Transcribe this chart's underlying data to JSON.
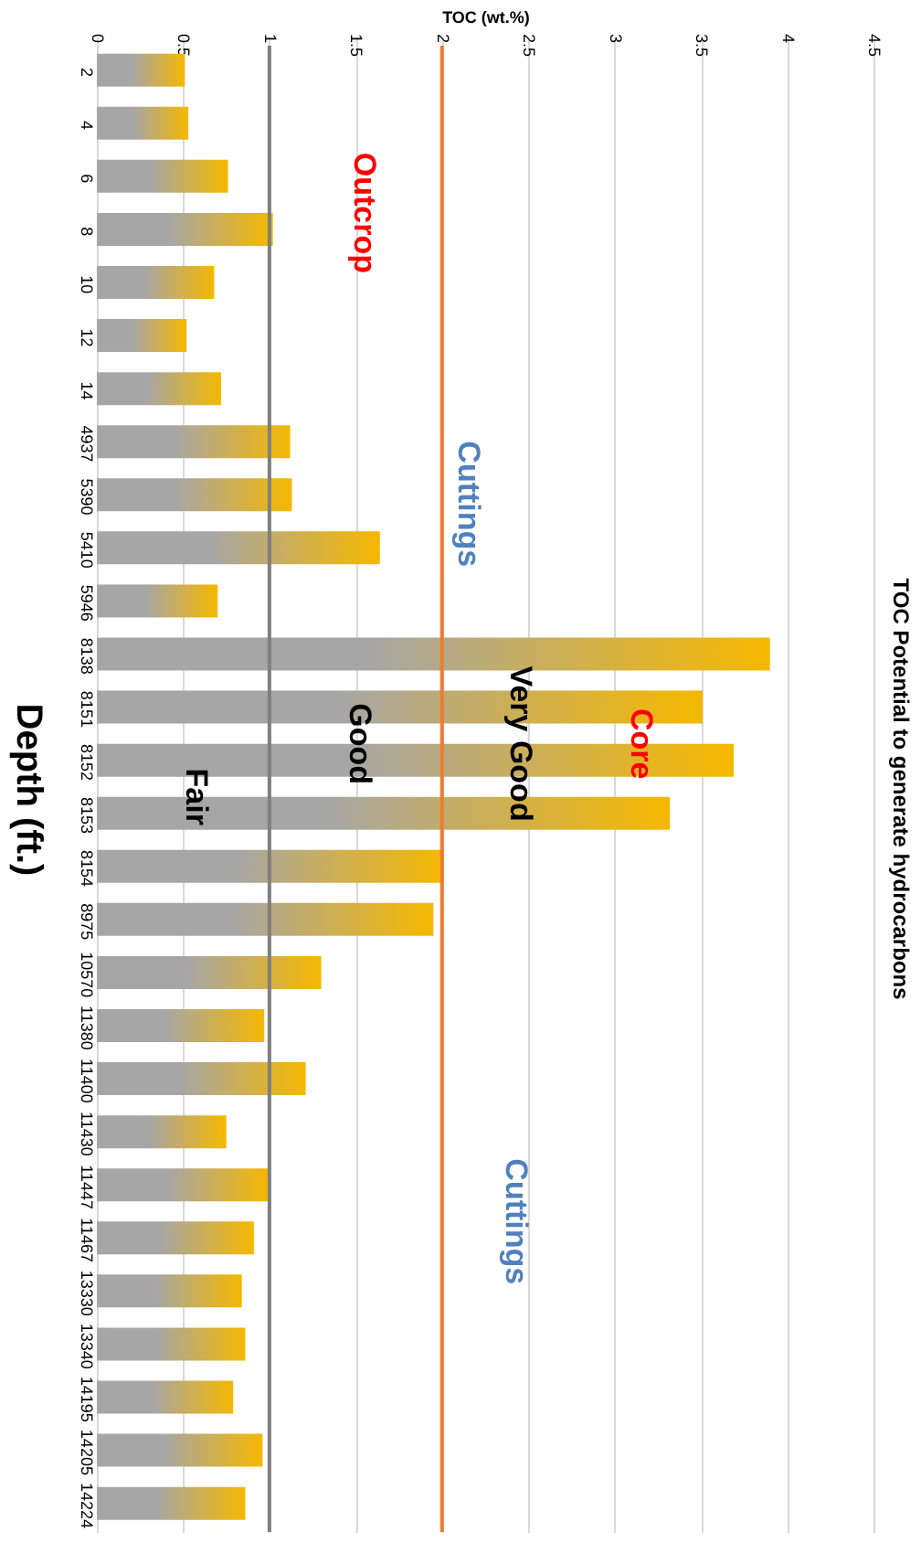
{
  "chart_data": {
    "type": "bar",
    "orientation": "horizontal",
    "title": "TOC Potential to generate hydrocarbons",
    "xlabel": "TOC (wt.%)",
    "ylabel": "Depth (ft.)",
    "categories": [
      "2",
      "4",
      "6",
      "8",
      "10",
      "12",
      "14",
      "4937",
      "5390",
      "5410",
      "5946",
      "8138",
      "8151",
      "8152",
      "8153",
      "8154",
      "8975",
      "10570",
      "11380",
      "11400",
      "11430",
      "11447",
      "11467",
      "13330",
      "13340",
      "14195",
      "14205",
      "14224"
    ],
    "series": [
      {
        "color": "#f5b800",
        "values": [
          0.51,
          0.53,
          0.76,
          1.02,
          0.68,
          0.52,
          0.72,
          1.12,
          1.13,
          1.64,
          0.7,
          3.9,
          3.51,
          3.69,
          3.32,
          2.01,
          1.95,
          1.3,
          0.97,
          1.21,
          0.75,
          1.0,
          0.91,
          0.84,
          0.86,
          0.79,
          0.96,
          0.86
        ]
      }
    ],
    "xlim": [
      0,
      4.5
    ],
    "xticks": [
      0,
      0.5,
      1,
      1.5,
      2,
      2.5,
      3,
      3.5,
      4,
      4.5
    ],
    "grid": "x",
    "ref_lines": [
      {
        "axis": "x",
        "value": 1,
        "color": "#7f7f7f"
      },
      {
        "axis": "x",
        "value": 2,
        "color": "#ed7d31"
      }
    ],
    "annotations": [
      "Outcrop",
      "Cuttings",
      {
        "text": "Core",
        "x": 3.15,
        "y": "8152"
      },
      {
        "text": "Very Good",
        "x": 2.45,
        "y": "8152"
      },
      {
        "text": "Good",
        "x": 1.52,
        "y": "8152"
      },
      {
        "text": "Fair",
        "x": 0.57,
        "y": "8153"
      },
      "Cuttings"
    ]
  }
}
